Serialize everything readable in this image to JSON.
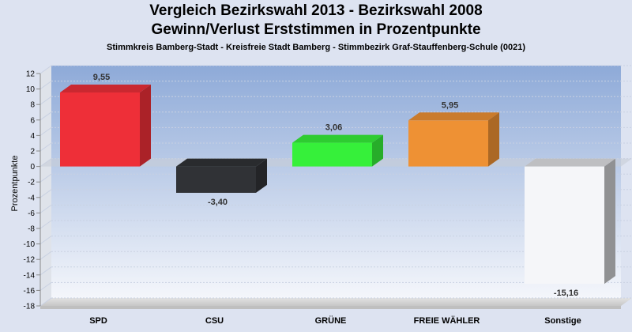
{
  "header": {
    "title_line1": "Vergleich Bezirkswahl 2013 - Bezirkswahl 2008",
    "title_line2": "Gewinn/Verlust Erststimmen in Prozentpunkte",
    "subtitle": "Stimmkreis Bamberg-Stadt - Kreisfreie Stadt Bamberg - Stimmbezirk Graf-Stauffenberg-Schule (0021)"
  },
  "chart_data": {
    "type": "bar",
    "title": "Vergleich Bezirkswahl 2013 - Bezirkswahl 2008 / Gewinn/Verlust Erststimmen in Prozentpunkte",
    "ylabel": "Prozentpunkte",
    "categories": [
      "SPD",
      "CSU",
      "GRÜNE",
      "FREIE WÄHLER",
      "Sonstige"
    ],
    "values": [
      9.55,
      -3.4,
      3.06,
      5.95,
      -15.16
    ],
    "value_labels": [
      "9,55",
      "-3,40",
      "3,06",
      "5,95",
      "-15,16"
    ],
    "colors": [
      "#ee2f38",
      "#303236",
      "#36f03a",
      "#ee9134",
      "#f5f6f9"
    ],
    "ylim": [
      -18,
      12
    ],
    "yticks": [
      12,
      10,
      8,
      6,
      4,
      2,
      0,
      -2,
      -4,
      -6,
      -8,
      -10,
      -12,
      -14,
      -16,
      -18
    ],
    "grid": true,
    "style": "3d"
  }
}
